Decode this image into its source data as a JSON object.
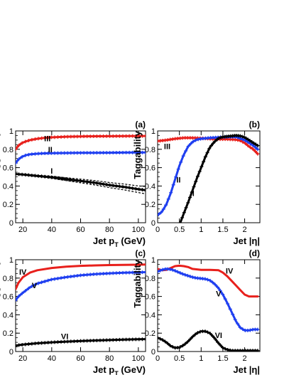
{
  "chart_data": [
    {
      "type": "line",
      "panel_label": "(a)",
      "xlabel": "Jet p",
      "xlabel_sub": "T",
      "xlabel_suffix": " (GeV)",
      "ylabel": "Taggability",
      "xlim": [
        15,
        105
      ],
      "ylim": [
        0,
        1
      ],
      "xticks": [
        20,
        40,
        60,
        80,
        100
      ],
      "yticks": [
        0,
        0.2,
        0.4,
        0.6,
        0.8,
        1
      ],
      "ytick_labels": [
        "0",
        "0.2",
        "0.4",
        "0.6",
        "0.8",
        "1"
      ],
      "series": [
        {
          "name": "III",
          "color": "#e8201c",
          "marker": "plus",
          "x": [
            15,
            17,
            19,
            22,
            25,
            30,
            35,
            40,
            50,
            60,
            70,
            80,
            90,
            100,
            105
          ],
          "y": [
            0.8,
            0.84,
            0.865,
            0.885,
            0.9,
            0.915,
            0.925,
            0.93,
            0.937,
            0.94,
            0.942,
            0.943,
            0.944,
            0.945,
            0.945
          ],
          "label_at": [
            37,
            0.92
          ]
        },
        {
          "name": "II",
          "color": "#1f3ff0",
          "marker": "plus",
          "x": [
            15,
            17,
            19,
            22,
            25,
            30,
            35,
            40,
            50,
            60,
            70,
            80,
            90,
            100,
            105
          ],
          "y": [
            0.65,
            0.69,
            0.715,
            0.735,
            0.745,
            0.752,
            0.756,
            0.758,
            0.76,
            0.761,
            0.762,
            0.763,
            0.764,
            0.765,
            0.765
          ],
          "label_at": [
            39,
            0.8
          ]
        },
        {
          "name": "I",
          "color": "#000000",
          "marker": "plus",
          "band": true,
          "x": [
            15,
            20,
            30,
            40,
            50,
            60,
            70,
            80,
            90,
            100,
            105
          ],
          "y": [
            0.53,
            0.525,
            0.51,
            0.495,
            0.475,
            0.455,
            0.435,
            0.41,
            0.39,
            0.365,
            0.355
          ],
          "label_at": [
            40,
            0.565
          ]
        }
      ]
    },
    {
      "type": "line",
      "panel_label": "(b)",
      "xlabel": "Jet |η|",
      "ylabel": "Taggability",
      "xlim": [
        0,
        2.35
      ],
      "ylim": [
        0,
        1
      ],
      "xticks": [
        0,
        0.5,
        1,
        1.5,
        2
      ],
      "yticks": [
        0,
        0.2,
        0.4,
        0.6,
        0.8,
        1
      ],
      "ytick_labels": [
        "0",
        "0.2",
        "0.4",
        "0.6",
        "0.8",
        "1"
      ],
      "series": [
        {
          "name": "III",
          "color": "#e8201c",
          "marker": "plus",
          "x": [
            0,
            0.2,
            0.4,
            0.6,
            0.8,
            1.0,
            1.2,
            1.4,
            1.6,
            1.8,
            1.9,
            2.0,
            2.1,
            2.2,
            2.3
          ],
          "y": [
            0.89,
            0.9,
            0.915,
            0.925,
            0.925,
            0.92,
            0.915,
            0.91,
            0.91,
            0.905,
            0.895,
            0.87,
            0.83,
            0.8,
            0.75
          ],
          "label_at": [
            0.22,
            0.835
          ]
        },
        {
          "name": "II",
          "color": "#1f3ff0",
          "marker": "plus",
          "x": [
            0.02,
            0.1,
            0.2,
            0.3,
            0.4,
            0.5,
            0.6,
            0.7,
            0.8,
            0.9,
            1.0,
            1.2,
            1.4,
            1.6,
            1.8,
            2.0,
            2.2,
            2.3
          ],
          "y": [
            0.09,
            0.12,
            0.2,
            0.32,
            0.47,
            0.62,
            0.74,
            0.83,
            0.88,
            0.905,
            0.915,
            0.925,
            0.93,
            0.935,
            0.935,
            0.9,
            0.84,
            0.8
          ],
          "label_at": [
            0.48,
            0.47
          ]
        },
        {
          "name": "I",
          "color": "#000000",
          "marker": "plus",
          "x": [
            0.52,
            0.6,
            0.7,
            0.8,
            0.9,
            1.0,
            1.1,
            1.2,
            1.3,
            1.4,
            1.5,
            1.6,
            1.7,
            1.8,
            1.9,
            2.0,
            2.1,
            2.2,
            2.3
          ],
          "y": [
            0.0,
            0.1,
            0.22,
            0.35,
            0.48,
            0.6,
            0.72,
            0.82,
            0.88,
            0.92,
            0.935,
            0.94,
            0.945,
            0.95,
            0.945,
            0.93,
            0.9,
            0.87,
            0.84
          ],
          "label_at": [
            0.82,
            0.32
          ]
        }
      ]
    },
    {
      "type": "line",
      "panel_label": "(c)",
      "xlabel": "Jet p",
      "xlabel_sub": "T",
      "xlabel_suffix": " (GeV)",
      "ylabel": "Taggability",
      "xlim": [
        15,
        105
      ],
      "ylim": [
        0,
        1
      ],
      "xticks": [
        20,
        40,
        60,
        80,
        100
      ],
      "yticks": [
        0,
        0.2,
        0.4,
        0.6,
        0.8,
        1
      ],
      "ytick_labels": [
        "0",
        "0.2",
        "0.4",
        "0.6",
        "0.8",
        "1"
      ],
      "series": [
        {
          "name": "IV",
          "color": "#e8201c",
          "marker": "none",
          "x": [
            15,
            17,
            20,
            25,
            30,
            40,
            50,
            60,
            70,
            80,
            90,
            100,
            105
          ],
          "y": [
            0.68,
            0.75,
            0.81,
            0.86,
            0.885,
            0.91,
            0.925,
            0.933,
            0.938,
            0.942,
            0.944,
            0.946,
            0.947
          ],
          "label_at": [
            20,
            0.87
          ]
        },
        {
          "name": "V",
          "color": "#1f3ff0",
          "marker": "plus",
          "x": [
            15,
            17,
            20,
            25,
            30,
            40,
            50,
            60,
            70,
            80,
            90,
            100,
            105
          ],
          "y": [
            0.56,
            0.6,
            0.64,
            0.7,
            0.74,
            0.785,
            0.81,
            0.83,
            0.843,
            0.852,
            0.858,
            0.862,
            0.864
          ],
          "label_at": [
            28,
            0.72
          ]
        },
        {
          "name": "VI",
          "color": "#000000",
          "marker": "plus",
          "x": [
            15,
            20,
            30,
            40,
            50,
            60,
            70,
            80,
            90,
            100,
            105
          ],
          "y": [
            0.065,
            0.075,
            0.09,
            0.1,
            0.108,
            0.115,
            0.12,
            0.125,
            0.13,
            0.133,
            0.135
          ],
          "label_at": [
            49,
            0.165
          ]
        }
      ]
    },
    {
      "type": "line",
      "panel_label": "(d)",
      "xlabel": "Jet |η|",
      "ylabel": "Taggability",
      "xlim": [
        0,
        2.35
      ],
      "ylim": [
        0,
        1
      ],
      "xticks": [
        0,
        0.5,
        1,
        1.5,
        2
      ],
      "yticks": [
        0,
        0.2,
        0.4,
        0.6,
        0.8,
        1
      ],
      "ytick_labels": [
        "0",
        "0.2",
        "0.4",
        "0.6",
        "0.8",
        "1"
      ],
      "series": [
        {
          "name": "IV",
          "color": "#e8201c",
          "marker": "none",
          "x": [
            0,
            0.1,
            0.2,
            0.3,
            0.4,
            0.5,
            0.6,
            0.7,
            0.8,
            1.0,
            1.2,
            1.4,
            1.5,
            1.6,
            1.7,
            1.8,
            1.9,
            2.0,
            2.1,
            2.2,
            2.3
          ],
          "y": [
            0.9,
            0.885,
            0.89,
            0.91,
            0.93,
            0.935,
            0.93,
            0.92,
            0.9,
            0.89,
            0.89,
            0.885,
            0.86,
            0.82,
            0.77,
            0.72,
            0.67,
            0.62,
            0.6,
            0.6,
            0.6
          ],
          "label_at": [
            1.65,
            0.88
          ]
        },
        {
          "name": "V",
          "color": "#1f3ff0",
          "marker": "plus",
          "x": [
            0,
            0.1,
            0.2,
            0.3,
            0.4,
            0.5,
            0.6,
            0.7,
            0.8,
            0.9,
            1.0,
            1.1,
            1.2,
            1.3,
            1.4,
            1.5,
            1.6,
            1.7,
            1.8,
            1.9,
            2.0,
            2.1,
            2.2,
            2.3
          ],
          "y": [
            0.87,
            0.89,
            0.9,
            0.895,
            0.88,
            0.86,
            0.84,
            0.825,
            0.81,
            0.8,
            0.795,
            0.79,
            0.775,
            0.74,
            0.69,
            0.62,
            0.53,
            0.43,
            0.33,
            0.26,
            0.23,
            0.23,
            0.24,
            0.24
          ],
          "label_at": [
            1.4,
            0.63
          ]
        },
        {
          "name": "VI",
          "color": "#000000",
          "marker": "plus",
          "x": [
            0,
            0.1,
            0.2,
            0.3,
            0.4,
            0.5,
            0.6,
            0.7,
            0.8,
            0.9,
            1.0,
            1.1,
            1.2,
            1.3,
            1.4,
            1.5,
            1.6,
            1.7,
            1.8,
            1.9,
            2.0,
            2.1,
            2.2,
            2.3
          ],
          "y": [
            0.15,
            0.13,
            0.1,
            0.06,
            0.04,
            0.045,
            0.07,
            0.11,
            0.16,
            0.2,
            0.22,
            0.22,
            0.2,
            0.15,
            0.09,
            0.04,
            0.02,
            0.01,
            0.01,
            0.01,
            0.01,
            0.01,
            0.01,
            0.01
          ],
          "label_at": [
            1.4,
            0.18
          ]
        }
      ]
    }
  ]
}
